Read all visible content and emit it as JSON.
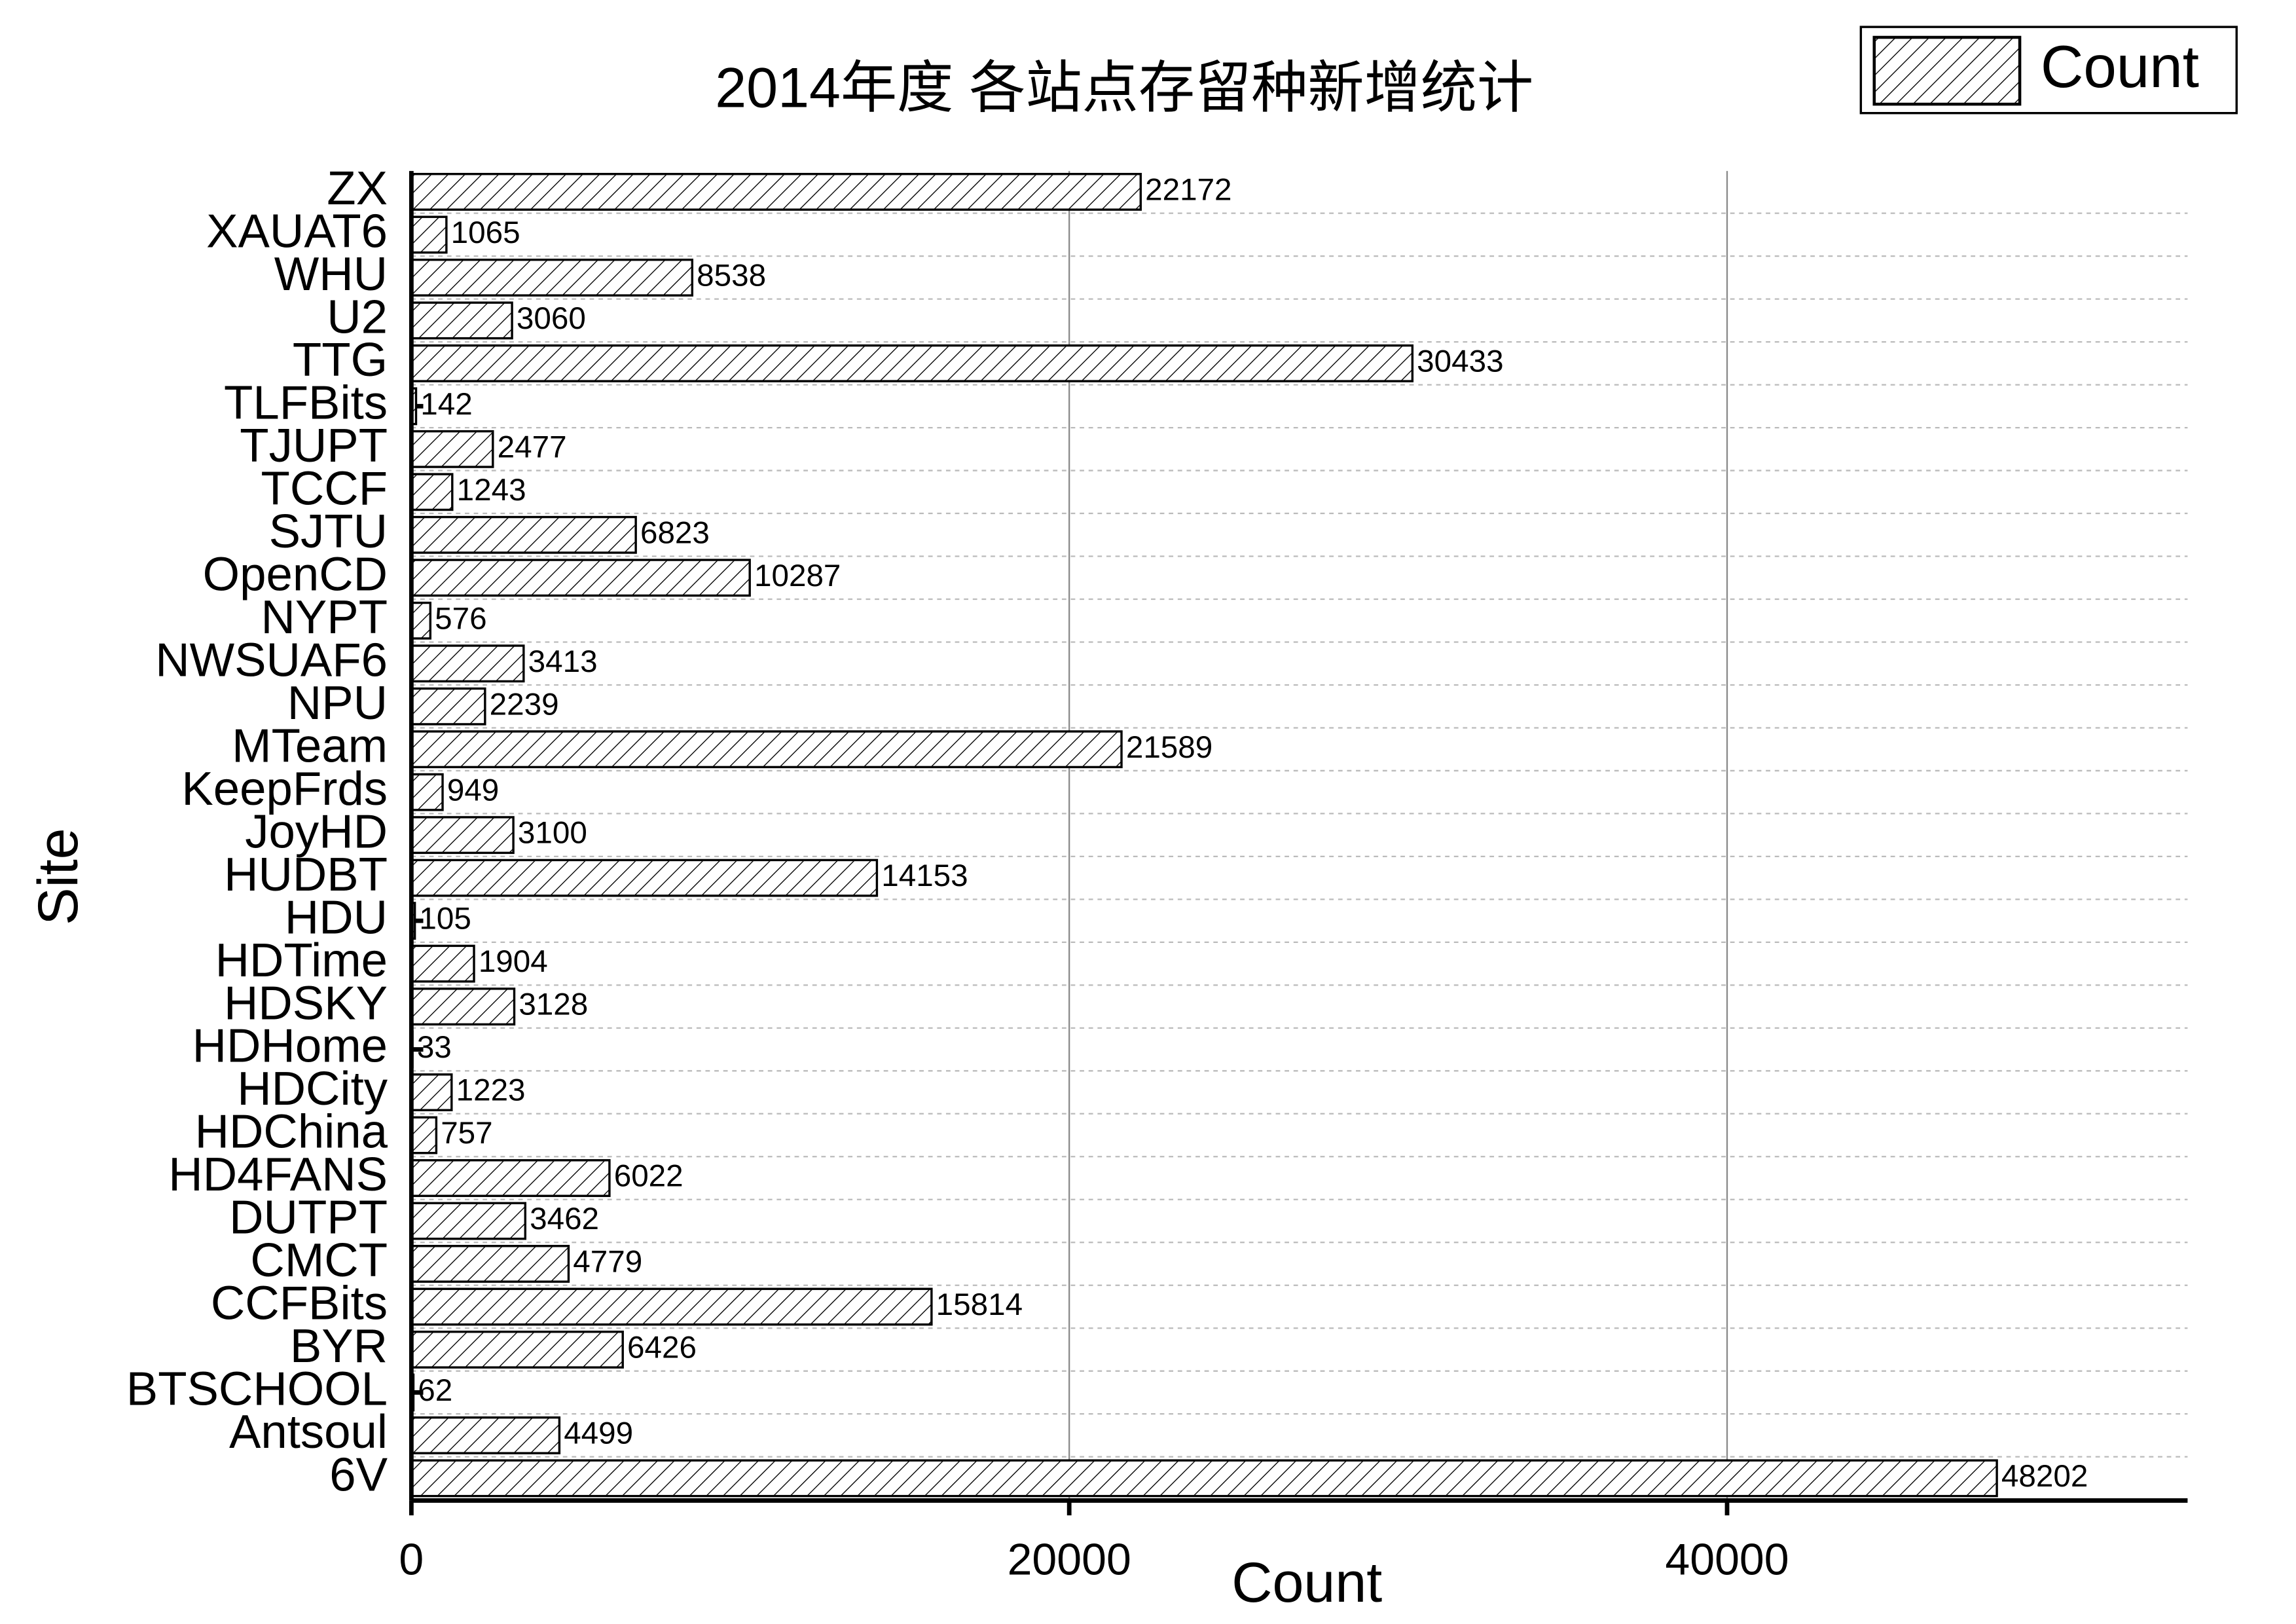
{
  "chart_data": {
    "type": "bar",
    "orientation": "horizontal",
    "title": "2014年度 各站点存留种新增统计",
    "x_label": "Count",
    "y_label": "Site",
    "categories": [
      "ZX",
      "XAUAT6",
      "WHU",
      "U2",
      "TTG",
      "TLFBits",
      "TJUPT",
      "TCCF",
      "SJTU",
      "OpenCD",
      "NYPT",
      "NWSUAF6",
      "NPU",
      "MTeam",
      "KeepFrds",
      "JoyHD",
      "HUDBT",
      "HDU",
      "HDTime",
      "HDSKY",
      "HDHome",
      "HDCity",
      "HDChina",
      "HD4FANS",
      "DUTPT",
      "CMCT",
      "CCFBits",
      "BYR",
      "BTSCHOOL",
      "Antsoul",
      "6V"
    ],
    "series": [
      {
        "name": "Count",
        "color": "#000000",
        "pattern": "hatch",
        "values": [
          22172,
          1065,
          8538,
          3060,
          30433,
          142,
          2477,
          1243,
          6823,
          10287,
          576,
          3413,
          2239,
          21589,
          949,
          3100,
          14153,
          105,
          1904,
          3128,
          33,
          1223,
          757,
          6022,
          3462,
          4779,
          15814,
          6426,
          62,
          4499,
          48202
        ]
      }
    ],
    "xlim": [
      0,
      54000
    ],
    "xticks": [
      0,
      20000,
      40000
    ],
    "grid": true,
    "legend": "top-right"
  }
}
